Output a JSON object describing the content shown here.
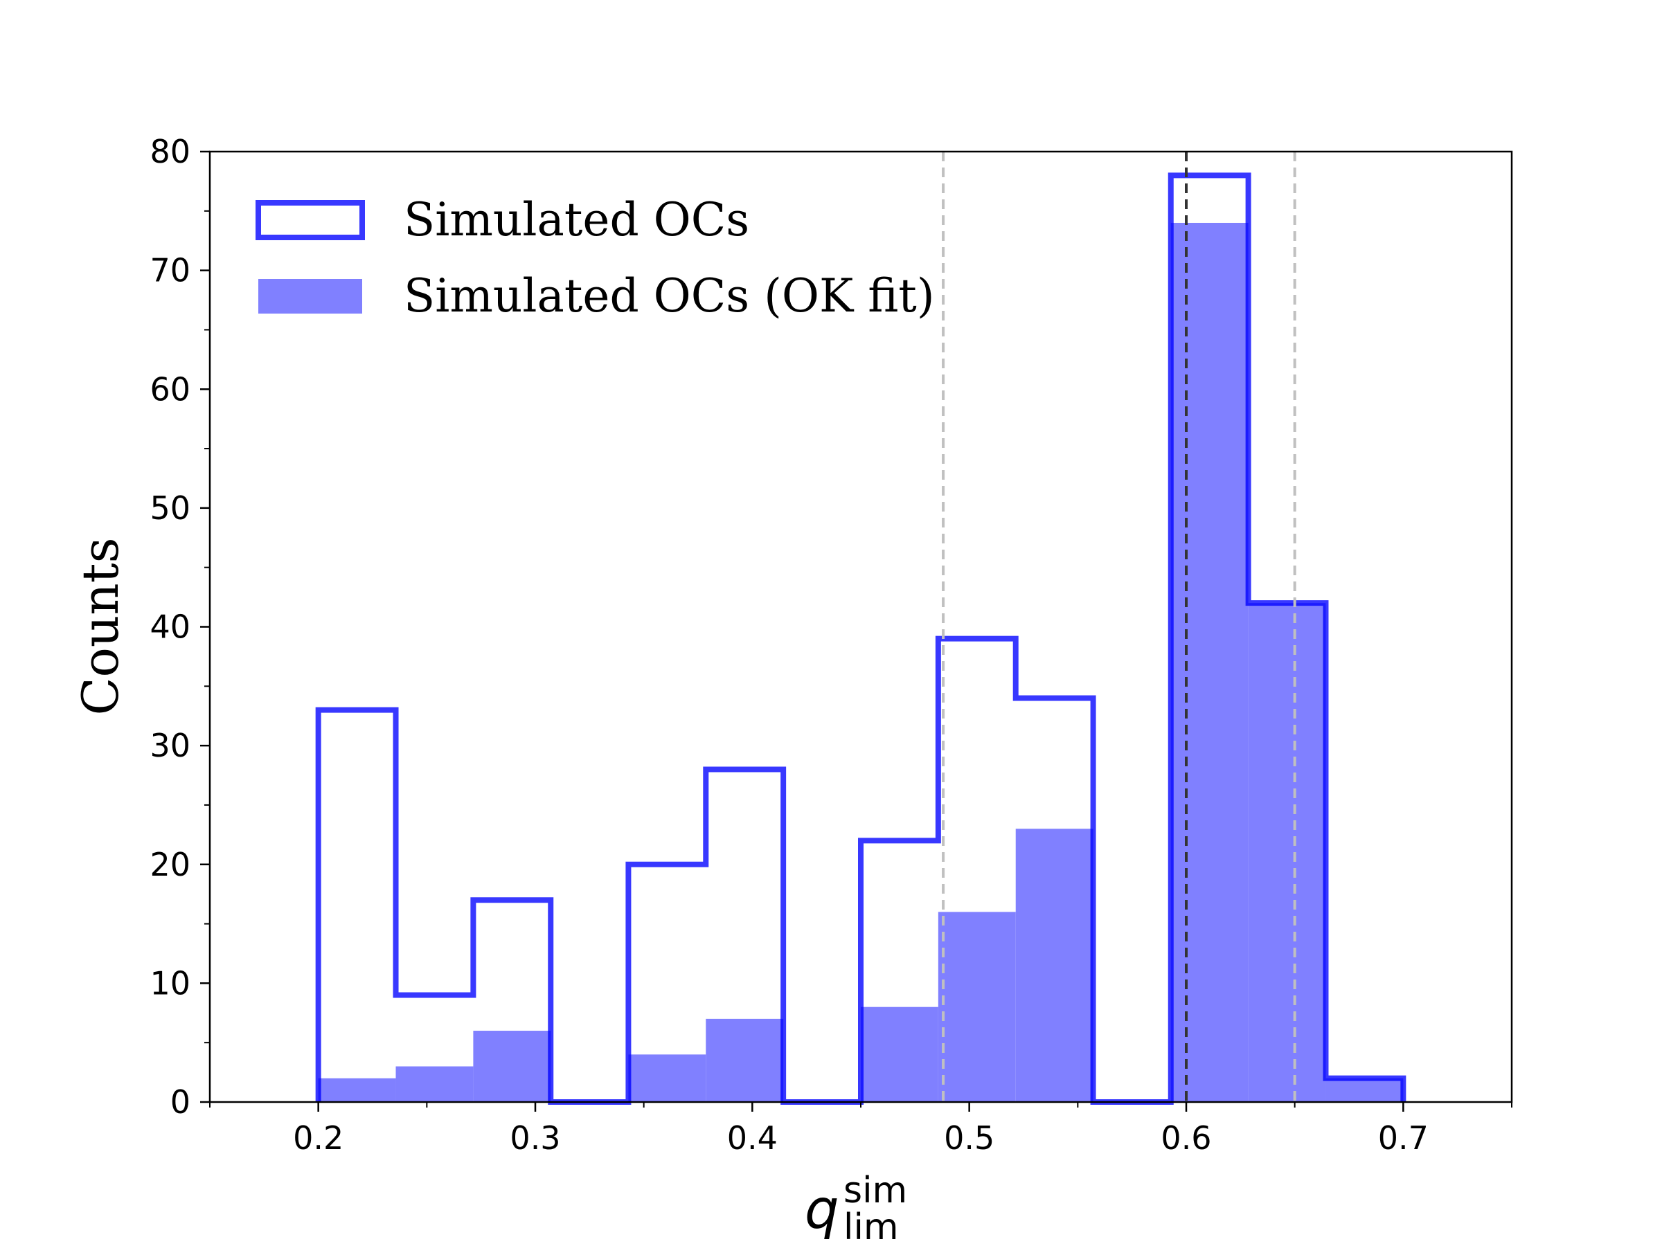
{
  "chart_data": {
    "type": "bar",
    "bin_edges": [
      0.2,
      0.2357,
      0.2714,
      0.3071,
      0.3429,
      0.3786,
      0.4143,
      0.45,
      0.4857,
      0.5214,
      0.5571,
      0.5929,
      0.6286,
      0.6643,
      0.7
    ],
    "series": [
      {
        "name": "Simulated OCs",
        "style": "step-outline",
        "color": "#0000ff",
        "values": [
          33,
          9,
          17,
          0,
          20,
          28,
          0,
          22,
          39,
          34,
          0,
          78,
          42,
          2
        ]
      },
      {
        "name": "Simulated OCs (OK fit)",
        "style": "filled",
        "color": "#8080ff",
        "values": [
          2,
          3,
          6,
          0,
          4,
          7,
          0,
          8,
          16,
          23,
          0,
          74,
          42,
          2
        ]
      }
    ],
    "vlines": [
      {
        "x": 0.488,
        "color": "#c0c0c0",
        "style": "dashed"
      },
      {
        "x": 0.6,
        "color": "#333333",
        "style": "dashed"
      },
      {
        "x": 0.65,
        "color": "#c0c0c0",
        "style": "dashed"
      }
    ],
    "xlim": [
      0.15,
      0.75
    ],
    "ylim": [
      0,
      80
    ],
    "xticks": [
      0.2,
      0.3,
      0.4,
      0.5,
      0.6,
      0.7
    ],
    "xtick_labels": [
      "0.2",
      "0.3",
      "0.4",
      "0.5",
      "0.6",
      "0.7"
    ],
    "yticks": [
      0,
      10,
      20,
      30,
      40,
      50,
      60,
      70,
      80
    ],
    "ytick_labels": [
      "0",
      "10",
      "20",
      "30",
      "40",
      "50",
      "60",
      "70",
      "80"
    ],
    "ylabel": "Counts",
    "xlabel": {
      "main": "q",
      "superscript": "sim",
      "subscript": "lim"
    },
    "legend_location": "upper-left",
    "grid": false
  }
}
